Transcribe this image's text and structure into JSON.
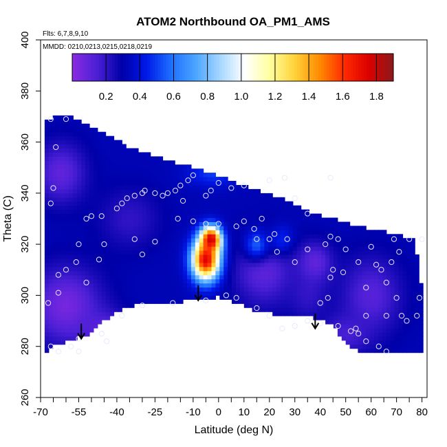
{
  "chart_data": {
    "type": "heatmap",
    "title": "ATOM2 Northbound OA_PM1_AMS",
    "flights_note": "Flts: 6,7,8,9,10",
    "dates_note": "MMDD: 0210,0213,0215,0218,0219",
    "xlabel": "Latitude (deg N)",
    "ylabel": "Theta (C)",
    "xlim": [
      -70,
      82
    ],
    "ylim": [
      260,
      400
    ],
    "x_ticks": [
      -70,
      -55,
      -40,
      -25,
      -10,
      0,
      10,
      20,
      30,
      40,
      50,
      60,
      70,
      80
    ],
    "x_tick_labels": [
      "-70",
      "-55",
      "-40",
      "-25",
      "-10",
      "0",
      "10",
      "20",
      "30",
      "40",
      "50",
      "60",
      "70",
      "80"
    ],
    "x_minor_ticks": [
      -65,
      -60,
      -50,
      -45,
      -35,
      -30,
      -20,
      -15,
      -5,
      5,
      15,
      25,
      35,
      45,
      55,
      65,
      75
    ],
    "y_ticks": [
      260,
      280,
      300,
      320,
      340,
      360,
      380,
      400
    ],
    "y_tick_labels": [
      "260",
      "280",
      "300",
      "320",
      "340",
      "360",
      "380",
      "400"
    ],
    "colorbar": {
      "range": [
        0.0,
        1.9
      ],
      "ticks": [
        0.2,
        0.4,
        0.6,
        0.8,
        1.0,
        1.2,
        1.4,
        1.6,
        1.8
      ],
      "tick_labels": [
        "0.2",
        "0.4",
        "0.6",
        "0.8",
        "1.0",
        "1.2",
        "1.4",
        "1.6",
        "1.8"
      ],
      "colors": [
        "#8a2be2",
        "#4b1fd6",
        "#0000a8",
        "#0018e8",
        "#1e6fff",
        "#4aa6ff",
        "#a8d8ff",
        "#ffffff",
        "#ffff9e",
        "#ffd23a",
        "#ff8c00",
        "#ff2a00",
        "#dc0000",
        "#8b1a1a"
      ]
    },
    "coverage_polygon": [
      [
        -68,
        278
      ],
      [
        -63,
        281
      ],
      [
        -57,
        283
      ],
      [
        -50,
        285
      ],
      [
        -45,
        290
      ],
      [
        -40,
        294
      ],
      [
        -33,
        296
      ],
      [
        -20,
        297
      ],
      [
        -10,
        298
      ],
      [
        -5,
        298.5
      ],
      [
        0,
        299.5
      ],
      [
        5,
        298
      ],
      [
        10,
        296
      ],
      [
        15,
        294
      ],
      [
        20,
        293
      ],
      [
        30,
        292
      ],
      [
        40,
        291
      ],
      [
        45,
        288
      ],
      [
        50,
        281
      ],
      [
        55,
        278
      ],
      [
        60,
        278
      ],
      [
        70,
        278
      ],
      [
        80,
        278
      ],
      [
        80,
        303
      ],
      [
        77,
        322
      ],
      [
        65,
        325
      ],
      [
        55,
        327
      ],
      [
        45,
        330
      ],
      [
        35,
        333
      ],
      [
        25,
        338
      ],
      [
        15,
        341
      ],
      [
        5,
        345
      ],
      [
        -10,
        350
      ],
      [
        -20,
        353
      ],
      [
        -35,
        358
      ],
      [
        -45,
        364
      ],
      [
        -53,
        367
      ],
      [
        -58,
        370
      ],
      [
        -65,
        370
      ],
      [
        -68,
        368
      ]
    ],
    "field_blobs": [
      {
        "lat": -60,
        "theta": 296,
        "value": 0.05,
        "sx": 14,
        "sy": 15
      },
      {
        "lat": -45,
        "theta": 286,
        "value": 0.1,
        "sx": 10,
        "sy": 8
      },
      {
        "lat": -62,
        "theta": 348,
        "value": 0.1,
        "sx": 10,
        "sy": 12
      },
      {
        "lat": -35,
        "theta": 330,
        "value": 0.2,
        "sx": 12,
        "sy": 12
      },
      {
        "lat": 18,
        "theta": 310,
        "value": 0.1,
        "sx": 12,
        "sy": 14
      },
      {
        "lat": 60,
        "theta": 300,
        "value": 0.12,
        "sx": 12,
        "sy": 15
      },
      {
        "lat": 50,
        "theta": 285,
        "value": 0.15,
        "sx": 10,
        "sy": 8
      },
      {
        "lat": 35,
        "theta": 300,
        "value": 0.2,
        "sx": 8,
        "sy": 10
      },
      {
        "lat": -2,
        "theta": 348,
        "value": 0.5,
        "sx": 10,
        "sy": 5
      },
      {
        "lat": 15,
        "theta": 320,
        "value": 0.55,
        "sx": 5,
        "sy": 6
      },
      {
        "lat": 25,
        "theta": 322,
        "value": 0.45,
        "sx": 5,
        "sy": 6
      },
      {
        "lat": 38,
        "theta": 313,
        "value": 0.1,
        "sx": 7,
        "sy": 8
      },
      {
        "lat": -5,
        "theta": 314,
        "value": 1.75,
        "sx": 5.5,
        "sy": 8
      },
      {
        "lat": -3,
        "theta": 322,
        "value": 1.8,
        "sx": 4,
        "sy": 5
      }
    ],
    "field_background": 0.32,
    "sample_points": [
      [
        -66,
        369
      ],
      [
        -60,
        369
      ],
      [
        -64,
        358
      ],
      [
        -65,
        342
      ],
      [
        -66,
        336
      ],
      [
        -63,
        308
      ],
      [
        -67,
        297
      ],
      [
        -63,
        301
      ],
      [
        -60,
        310
      ],
      [
        -56,
        313
      ],
      [
        -52,
        305
      ],
      [
        -58,
        280
      ],
      [
        -55,
        283
      ],
      [
        -46,
        285
      ],
      [
        -55,
        320
      ],
      [
        -47,
        314
      ],
      [
        -45,
        320
      ],
      [
        -52,
        330
      ],
      [
        -50,
        331
      ],
      [
        -46,
        331
      ],
      [
        -40,
        334
      ],
      [
        -38,
        336
      ],
      [
        -36,
        338
      ],
      [
        -33,
        339
      ],
      [
        -30,
        340
      ],
      [
        -29,
        341
      ],
      [
        -25,
        340
      ],
      [
        -22,
        339
      ],
      [
        -20,
        340
      ],
      [
        -17,
        341
      ],
      [
        -14,
        337
      ],
      [
        -16,
        330
      ],
      [
        -15,
        343
      ],
      [
        -12,
        345
      ],
      [
        -10,
        347
      ],
      [
        -5,
        339
      ],
      [
        -3,
        341
      ],
      [
        0,
        344
      ],
      [
        5,
        342
      ],
      [
        10,
        343
      ],
      [
        -10,
        329
      ],
      [
        -25,
        321
      ],
      [
        -33,
        322
      ],
      [
        -30,
        316
      ],
      [
        -5,
        328
      ],
      [
        0,
        328
      ],
      [
        7,
        327
      ],
      [
        14,
        326
      ],
      [
        20,
        345
      ],
      [
        26,
        346
      ],
      [
        30,
        338
      ],
      [
        44,
        346
      ],
      [
        35,
        332
      ],
      [
        27,
        322
      ],
      [
        22,
        324
      ],
      [
        20,
        322
      ],
      [
        17,
        330
      ],
      [
        10,
        329
      ],
      [
        15,
        322
      ],
      [
        23,
        317
      ],
      [
        30,
        313
      ],
      [
        35,
        318
      ],
      [
        42,
        320
      ],
      [
        44,
        323
      ],
      [
        47,
        322
      ],
      [
        50,
        318
      ],
      [
        55,
        313
      ],
      [
        60,
        319
      ],
      [
        62,
        312
      ],
      [
        58,
        303
      ],
      [
        49,
        309
      ],
      [
        45,
        310
      ],
      [
        44,
        307
      ],
      [
        40,
        297
      ],
      [
        43,
        299
      ],
      [
        47,
        288
      ],
      [
        52,
        286
      ],
      [
        55,
        285
      ],
      [
        40,
        289
      ],
      [
        35,
        290
      ],
      [
        30,
        288
      ],
      [
        25,
        287
      ],
      [
        20,
        292
      ],
      [
        15,
        295
      ],
      [
        7,
        299
      ],
      [
        3,
        300
      ],
      [
        -5,
        298
      ],
      [
        -18,
        297
      ],
      [
        -30,
        296
      ],
      [
        -38,
        292
      ],
      [
        -44,
        282
      ],
      [
        -55,
        278
      ],
      [
        -63,
        278
      ],
      [
        -66,
        280
      ],
      [
        69,
        322
      ],
      [
        75,
        322
      ],
      [
        68,
        313
      ],
      [
        64,
        310
      ],
      [
        66,
        305
      ],
      [
        70,
        299
      ],
      [
        72,
        292
      ],
      [
        74,
        290
      ],
      [
        78,
        292
      ],
      [
        79,
        299
      ],
      [
        63,
        280
      ],
      [
        66,
        278
      ],
      [
        58,
        282
      ],
      [
        80,
        322
      ],
      [
        71,
        317
      ],
      [
        66,
        292
      ],
      [
        54,
        287
      ],
      [
        58,
        292
      ]
    ],
    "arrows": [
      {
        "lat": -54,
        "theta": 283
      },
      {
        "lat": -8,
        "theta": 298
      },
      {
        "lat": 38,
        "theta": 287
      }
    ]
  }
}
